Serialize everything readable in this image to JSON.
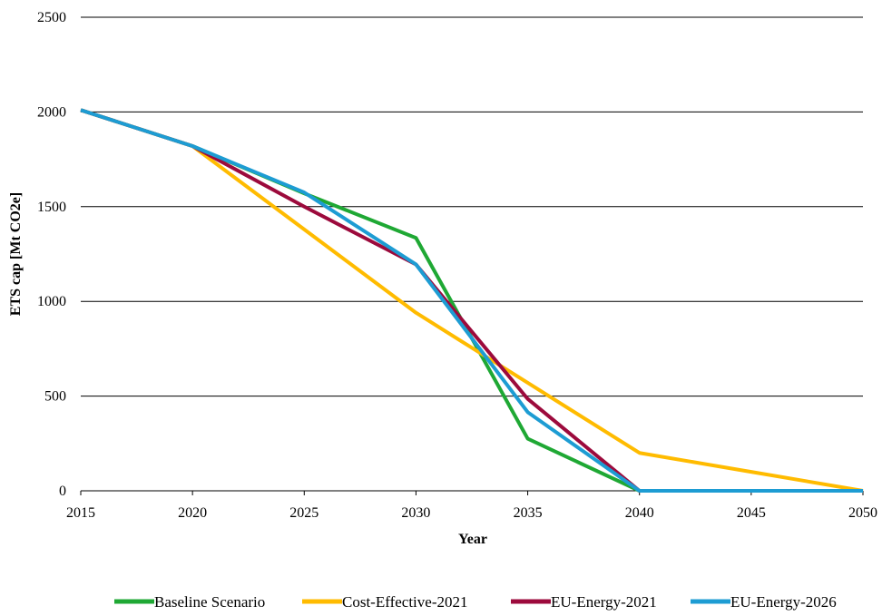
{
  "chart_data": {
    "type": "line",
    "title": "",
    "xlabel": "Year",
    "ylabel": "ETS cap [Mt CO2e]",
    "x": [
      2015,
      2020,
      2025,
      2030,
      2035,
      2040,
      2045,
      2050
    ],
    "xlim": [
      2015,
      2050
    ],
    "ylim": [
      0,
      2500
    ],
    "x_ticks": [
      "2015",
      "2020",
      "2025",
      "2030",
      "2035",
      "2040",
      "2045",
      "2050"
    ],
    "y_ticks": [
      "0",
      "500",
      "1000",
      "1500",
      "2000",
      "2500"
    ],
    "grid": "horizontal",
    "legend_position": "bottom",
    "series": [
      {
        "name": "Baseline Scenario",
        "color": "#1fa834",
        "values": [
          2010,
          1820,
          1570,
          1335,
          275,
          0,
          0,
          0
        ]
      },
      {
        "name": "Cost-Effective-2021",
        "color": "#ffbb00",
        "values": [
          2010,
          1820,
          1380,
          940,
          570,
          200,
          100,
          0
        ]
      },
      {
        "name": "EU-Energy-2021",
        "color": "#9c0a3c",
        "values": [
          2010,
          1820,
          1500,
          1195,
          485,
          0,
          0,
          0
        ]
      },
      {
        "name": "EU-Energy-2026",
        "color": "#1d9cd3",
        "values": [
          2010,
          1820,
          1575,
          1195,
          415,
          0,
          0,
          0
        ]
      }
    ]
  }
}
